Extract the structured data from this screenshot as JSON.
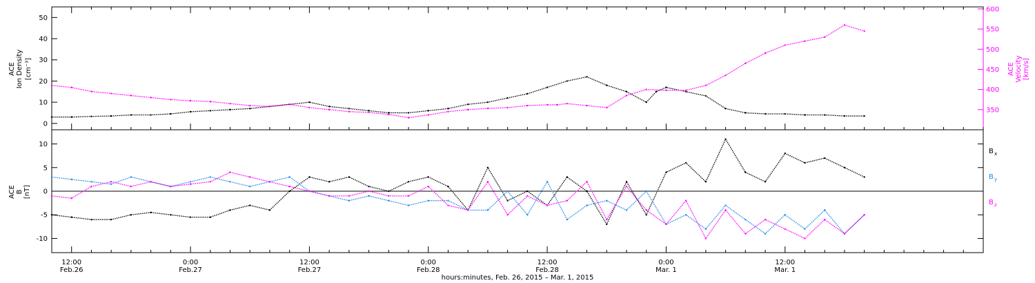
{
  "colors": {
    "black": "#000000",
    "magenta": "#ff00ff",
    "blue": "#1e88e5"
  },
  "chart_data": [
    {
      "type": "scatter",
      "panel": "plasma",
      "ylabel_left": [
        "ACE",
        "Ion Density",
        "[cm⁻³]"
      ],
      "ylabel_right": [
        "ACE",
        "Velocity",
        "[km/s]"
      ],
      "ylim_left": [
        -3,
        55
      ],
      "yticks_left": [
        0,
        10,
        20,
        30,
        40,
        50
      ],
      "ylim_right": [
        300,
        605
      ],
      "yticks_right": [
        350,
        400,
        450,
        500,
        550,
        600
      ],
      "series": [
        {
          "axis": "left",
          "color": "#000000",
          "x": [
            0,
            2,
            4,
            6,
            8,
            10,
            12,
            14,
            16,
            18,
            20,
            22,
            24,
            26,
            28,
            30,
            32,
            34,
            36,
            38,
            40,
            42,
            44,
            46,
            48,
            50,
            52,
            54,
            56,
            58,
            60,
            61,
            62,
            64,
            66,
            68,
            70,
            72,
            74,
            76,
            78,
            80,
            82
          ],
          "y": [
            3,
            3,
            3.3,
            3.5,
            4,
            4,
            4.5,
            5.5,
            6,
            6.5,
            7,
            8,
            9,
            10,
            8,
            7,
            6,
            5,
            5,
            6,
            7,
            9,
            10,
            12,
            14,
            17,
            20,
            22,
            18,
            15,
            10,
            15,
            17,
            15,
            13,
            7,
            5,
            4.5,
            4.5,
            4,
            4,
            3.5,
            3.5
          ]
        },
        {
          "axis": "right",
          "color": "#ff00ff",
          "x": [
            0,
            2,
            4,
            6,
            8,
            10,
            12,
            14,
            16,
            18,
            20,
            22,
            24,
            26,
            28,
            30,
            32,
            34,
            36,
            38,
            40,
            42,
            44,
            46,
            48,
            50,
            51,
            52,
            54,
            56,
            58,
            60,
            62,
            64,
            66,
            68,
            70,
            72,
            74,
            76,
            78,
            80,
            82
          ],
          "y": [
            410,
            405,
            395,
            390,
            385,
            380,
            375,
            372,
            370,
            365,
            360,
            358,
            363,
            355,
            350,
            345,
            343,
            338,
            330,
            337,
            345,
            350,
            353,
            355,
            360,
            362,
            362,
            365,
            360,
            355,
            385,
            400,
            398,
            398,
            410,
            435,
            465,
            490,
            510,
            520,
            530,
            560,
            545
          ]
        }
      ]
    },
    {
      "type": "scatter",
      "panel": "magnetic",
      "ylabel_left": [
        "ACE",
        "B",
        "[nT]"
      ],
      "ylim": [
        -13,
        13
      ],
      "yticks": [
        -10,
        -5,
        0,
        5,
        10
      ],
      "legend": [
        {
          "label": "B",
          "sub": "x",
          "color": "#000000"
        },
        {
          "label": "B",
          "sub": "y",
          "color": "#1e88e5"
        },
        {
          "label": "B",
          "sub": "z",
          "color": "#ff00ff"
        }
      ],
      "series": [
        {
          "color": "#000000",
          "x": [
            0,
            2,
            4,
            6,
            8,
            10,
            12,
            14,
            16,
            18,
            20,
            22,
            24,
            26,
            28,
            30,
            32,
            34,
            36,
            38,
            40,
            42,
            44,
            46,
            48,
            50,
            52,
            54,
            56,
            58,
            60,
            62,
            64,
            66,
            68,
            70,
            72,
            74,
            76,
            78,
            80,
            82
          ],
          "y": [
            -5,
            -5.5,
            -6,
            -6,
            -5,
            -4.5,
            -5,
            -5.5,
            -5.5,
            -4,
            -3,
            -4,
            0,
            3,
            2,
            3,
            1,
            0,
            2,
            3,
            1,
            -4,
            5,
            -2,
            0,
            -3,
            3,
            0,
            -7,
            2,
            -5,
            4,
            6,
            2,
            11,
            4,
            2,
            8,
            6,
            7,
            5,
            3
          ]
        },
        {
          "color": "#1e88e5",
          "x": [
            0,
            2,
            4,
            6,
            8,
            10,
            12,
            14,
            16,
            18,
            20,
            22,
            24,
            26,
            28,
            30,
            32,
            34,
            36,
            38,
            40,
            42,
            44,
            46,
            48,
            50,
            52,
            54,
            56,
            58,
            60,
            62,
            64,
            66,
            68,
            70,
            72,
            74,
            76,
            78,
            80,
            82
          ],
          "y": [
            3,
            2.5,
            2,
            1.5,
            3,
            2,
            1,
            2,
            3,
            2,
            1,
            2,
            3,
            0,
            -1,
            -2,
            -1,
            -2,
            -3,
            -2,
            -2,
            -4,
            -4,
            0,
            -5,
            2,
            -6,
            -3,
            -2,
            -4,
            0,
            -7,
            -5,
            -8,
            -3,
            -6,
            -9,
            -5,
            -8,
            -4,
            -9,
            -5
          ]
        },
        {
          "color": "#ff00ff",
          "x": [
            0,
            2,
            4,
            6,
            8,
            10,
            12,
            14,
            16,
            18,
            20,
            22,
            24,
            26,
            28,
            30,
            32,
            34,
            36,
            38,
            40,
            42,
            44,
            46,
            48,
            50,
            52,
            54,
            56,
            58,
            60,
            62,
            64,
            66,
            68,
            70,
            72,
            74,
            76,
            78,
            80,
            82
          ],
          "y": [
            -1,
            -1.5,
            1,
            2,
            1,
            2,
            1,
            1.5,
            2,
            4,
            3,
            2,
            1,
            0,
            -1,
            -1,
            0,
            -1,
            -1,
            1,
            -3,
            -4,
            2,
            -5,
            -1,
            -3,
            -2,
            2,
            -6,
            1,
            -4,
            -7,
            -2,
            -10,
            -4,
            -9,
            -6,
            -8,
            -10,
            -6,
            -9,
            -5
          ]
        }
      ]
    }
  ],
  "x_axis": {
    "start_hour": 0,
    "end_hour": 94,
    "ticks": [
      {
        "hour": 2,
        "time": "12:00",
        "date": "Feb.26"
      },
      {
        "hour": 14,
        "time": "0:00",
        "date": "Feb.27"
      },
      {
        "hour": 26,
        "time": "12:00",
        "date": "Feb.27"
      },
      {
        "hour": 38,
        "time": "0:00",
        "date": "Feb.28"
      },
      {
        "hour": 50,
        "time": "12:00",
        "date": "Feb.28"
      },
      {
        "hour": 62,
        "time": "0:00",
        "date": "Mar. 1"
      },
      {
        "hour": 74,
        "time": "12:00",
        "date": "Mar. 1"
      }
    ],
    "label": "hours:minutes, Feb. 26, 2015 – Mar.  1, 2015"
  }
}
